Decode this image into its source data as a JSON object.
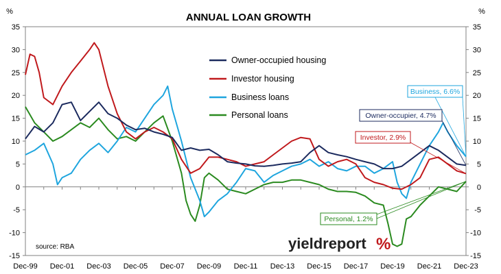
{
  "chart_data": {
    "type": "line",
    "title": "ANNUAL LOAN GROWTH",
    "unit_left": "%",
    "unit_right": "%",
    "ylim": [
      -15,
      35
    ],
    "yticks": [
      -15,
      -10,
      -5,
      0,
      5,
      10,
      15,
      20,
      25,
      30,
      35
    ],
    "xlim": [
      "1999-12",
      "2023-12"
    ],
    "xtick_labels": [
      "Dec-99",
      "Dec-01",
      "Dec-03",
      "Dec-05",
      "Dec-07",
      "Dec-09",
      "Dec-11",
      "Dec-13",
      "Dec-15",
      "Dec-17",
      "Dec-19",
      "Dec-21",
      "Dec-23"
    ],
    "grid": false,
    "legend_position": "upper-center",
    "source": "source: RBA",
    "logo": "yieldreport %",
    "series": [
      {
        "name": "Owner-occupied housing",
        "color": "#1b2a5e",
        "points": [
          [
            "1999-12",
            10.5
          ],
          [
            "2000-06",
            13.2
          ],
          [
            "2000-12",
            12.0
          ],
          [
            "2001-06",
            14.0
          ],
          [
            "2001-12",
            18.0
          ],
          [
            "2002-06",
            18.5
          ],
          [
            "2002-12",
            14.5
          ],
          [
            "2003-06",
            16.5
          ],
          [
            "2003-12",
            18.5
          ],
          [
            "2004-06",
            16.0
          ],
          [
            "2004-12",
            15.0
          ],
          [
            "2005-06",
            13.5
          ],
          [
            "2005-12",
            12.5
          ],
          [
            "2006-06",
            12.8
          ],
          [
            "2006-12",
            12.0
          ],
          [
            "2007-06",
            11.5
          ],
          [
            "2007-12",
            10.8
          ],
          [
            "2008-06",
            8.0
          ],
          [
            "2008-12",
            8.5
          ],
          [
            "2009-06",
            8.0
          ],
          [
            "2009-12",
            8.2
          ],
          [
            "2010-06",
            7.0
          ],
          [
            "2010-12",
            5.5
          ],
          [
            "2011-06",
            5.2
          ],
          [
            "2011-12",
            5.0
          ],
          [
            "2012-06",
            4.6
          ],
          [
            "2012-12",
            4.5
          ],
          [
            "2013-06",
            4.7
          ],
          [
            "2013-12",
            5.0
          ],
          [
            "2014-06",
            5.2
          ],
          [
            "2014-12",
            5.5
          ],
          [
            "2015-06",
            7.5
          ],
          [
            "2015-12",
            9.0
          ],
          [
            "2016-06",
            7.5
          ],
          [
            "2016-12",
            7.0
          ],
          [
            "2017-06",
            6.6
          ],
          [
            "2017-12",
            6.0
          ],
          [
            "2018-06",
            5.5
          ],
          [
            "2018-12",
            5.0
          ],
          [
            "2019-06",
            4.0
          ],
          [
            "2019-12",
            4.0
          ],
          [
            "2020-06",
            4.5
          ],
          [
            "2020-12",
            6.0
          ],
          [
            "2021-06",
            7.5
          ],
          [
            "2021-12",
            9.0
          ],
          [
            "2022-06",
            8.0
          ],
          [
            "2022-12",
            6.5
          ],
          [
            "2023-06",
            5.0
          ],
          [
            "2023-12",
            4.7
          ]
        ]
      },
      {
        "name": "Investor housing",
        "color": "#c0191c",
        "points": [
          [
            "1999-12",
            24.5
          ],
          [
            "2000-03",
            29.0
          ],
          [
            "2000-06",
            28.5
          ],
          [
            "2000-09",
            25.0
          ],
          [
            "2000-12",
            19.5
          ],
          [
            "2001-06",
            18.0
          ],
          [
            "2001-12",
            22.0
          ],
          [
            "2002-06",
            25.0
          ],
          [
            "2002-12",
            27.5
          ],
          [
            "2003-06",
            30.0
          ],
          [
            "2003-09",
            31.5
          ],
          [
            "2003-12",
            30.0
          ],
          [
            "2004-06",
            22.0
          ],
          [
            "2004-12",
            16.0
          ],
          [
            "2005-06",
            12.0
          ],
          [
            "2005-12",
            10.5
          ],
          [
            "2006-06",
            12.0
          ],
          [
            "2006-12",
            13.0
          ],
          [
            "2007-06",
            12.0
          ],
          [
            "2007-12",
            10.5
          ],
          [
            "2008-06",
            6.0
          ],
          [
            "2008-12",
            3.0
          ],
          [
            "2009-06",
            4.0
          ],
          [
            "2009-12",
            6.5
          ],
          [
            "2010-06",
            6.5
          ],
          [
            "2010-12",
            6.0
          ],
          [
            "2011-06",
            5.5
          ],
          [
            "2011-12",
            4.5
          ],
          [
            "2012-06",
            5.0
          ],
          [
            "2012-12",
            5.5
          ],
          [
            "2013-06",
            7.0
          ],
          [
            "2013-12",
            8.5
          ],
          [
            "2014-06",
            10.0
          ],
          [
            "2014-12",
            10.8
          ],
          [
            "2015-06",
            10.5
          ],
          [
            "2015-12",
            6.0
          ],
          [
            "2016-06",
            4.5
          ],
          [
            "2016-12",
            5.5
          ],
          [
            "2017-06",
            6.0
          ],
          [
            "2017-12",
            5.0
          ],
          [
            "2018-06",
            2.0
          ],
          [
            "2018-12",
            1.0
          ],
          [
            "2019-06",
            0.5
          ],
          [
            "2019-12",
            -0.3
          ],
          [
            "2020-06",
            -0.5
          ],
          [
            "2020-12",
            0.5
          ],
          [
            "2021-06",
            2.0
          ],
          [
            "2021-12",
            6.0
          ],
          [
            "2022-06",
            6.5
          ],
          [
            "2022-12",
            5.0
          ],
          [
            "2023-06",
            3.5
          ],
          [
            "2023-12",
            2.9
          ]
        ]
      },
      {
        "name": "Business loans",
        "color": "#1ea5de",
        "points": [
          [
            "1999-12",
            7.0
          ],
          [
            "2000-06",
            8.0
          ],
          [
            "2000-12",
            9.5
          ],
          [
            "2001-06",
            5.0
          ],
          [
            "2001-09",
            0.5
          ],
          [
            "2001-12",
            2.0
          ],
          [
            "2002-06",
            3.0
          ],
          [
            "2002-12",
            6.0
          ],
          [
            "2003-06",
            8.0
          ],
          [
            "2003-12",
            9.5
          ],
          [
            "2004-06",
            7.5
          ],
          [
            "2004-12",
            10.0
          ],
          [
            "2005-06",
            13.0
          ],
          [
            "2005-12",
            12.0
          ],
          [
            "2006-06",
            15.0
          ],
          [
            "2006-12",
            18.0
          ],
          [
            "2007-06",
            20.0
          ],
          [
            "2007-09",
            22.0
          ],
          [
            "2007-12",
            17.0
          ],
          [
            "2008-06",
            10.0
          ],
          [
            "2008-12",
            2.0
          ],
          [
            "2009-06",
            -3.0
          ],
          [
            "2009-09",
            -6.5
          ],
          [
            "2009-12",
            -5.5
          ],
          [
            "2010-06",
            -3.0
          ],
          [
            "2010-12",
            -1.5
          ],
          [
            "2011-06",
            1.0
          ],
          [
            "2011-12",
            4.0
          ],
          [
            "2012-06",
            3.5
          ],
          [
            "2012-12",
            1.0
          ],
          [
            "2013-06",
            2.5
          ],
          [
            "2013-12",
            3.5
          ],
          [
            "2014-06",
            4.5
          ],
          [
            "2014-12",
            5.0
          ],
          [
            "2015-06",
            6.0
          ],
          [
            "2015-12",
            4.5
          ],
          [
            "2016-06",
            5.5
          ],
          [
            "2016-12",
            4.0
          ],
          [
            "2017-06",
            3.5
          ],
          [
            "2017-12",
            4.5
          ],
          [
            "2018-06",
            4.5
          ],
          [
            "2018-12",
            3.0
          ],
          [
            "2019-06",
            4.0
          ],
          [
            "2019-12",
            5.5
          ],
          [
            "2020-03",
            1.0
          ],
          [
            "2020-06",
            -1.5
          ],
          [
            "2020-09",
            -2.5
          ],
          [
            "2020-12",
            1.0
          ],
          [
            "2021-06",
            5.0
          ],
          [
            "2021-12",
            9.0
          ],
          [
            "2022-06",
            12.0
          ],
          [
            "2022-09",
            14.0
          ],
          [
            "2022-12",
            12.0
          ],
          [
            "2023-06",
            9.0
          ],
          [
            "2023-12",
            6.6
          ]
        ]
      },
      {
        "name": "Personal loans",
        "color": "#2a8a1f",
        "points": [
          [
            "1999-12",
            17.5
          ],
          [
            "2000-06",
            14.0
          ],
          [
            "2000-12",
            12.0
          ],
          [
            "2001-06",
            10.0
          ],
          [
            "2001-12",
            11.0
          ],
          [
            "2002-06",
            12.5
          ],
          [
            "2002-12",
            14.0
          ],
          [
            "2003-06",
            13.0
          ],
          [
            "2003-12",
            15.0
          ],
          [
            "2004-06",
            12.5
          ],
          [
            "2004-12",
            10.5
          ],
          [
            "2005-06",
            11.0
          ],
          [
            "2005-12",
            10.0
          ],
          [
            "2006-06",
            12.0
          ],
          [
            "2006-12",
            14.0
          ],
          [
            "2007-06",
            15.5
          ],
          [
            "2007-12",
            10.0
          ],
          [
            "2008-06",
            3.0
          ],
          [
            "2008-09",
            -3.0
          ],
          [
            "2008-12",
            -6.0
          ],
          [
            "2009-03",
            -7.5
          ],
          [
            "2009-06",
            -4.0
          ],
          [
            "2009-09",
            2.0
          ],
          [
            "2009-12",
            3.0
          ],
          [
            "2010-06",
            1.5
          ],
          [
            "2010-12",
            -0.5
          ],
          [
            "2011-06",
            -1.0
          ],
          [
            "2011-12",
            -1.5
          ],
          [
            "2012-06",
            -0.5
          ],
          [
            "2012-12",
            0.5
          ],
          [
            "2013-06",
            1.0
          ],
          [
            "2013-12",
            1.0
          ],
          [
            "2014-06",
            1.5
          ],
          [
            "2014-12",
            1.5
          ],
          [
            "2015-06",
            1.0
          ],
          [
            "2015-12",
            0.5
          ],
          [
            "2016-06",
            -0.5
          ],
          [
            "2016-12",
            -1.0
          ],
          [
            "2017-06",
            -1.0
          ],
          [
            "2017-12",
            -1.2
          ],
          [
            "2018-06",
            -2.0
          ],
          [
            "2018-12",
            -3.5
          ],
          [
            "2019-06",
            -4.0
          ],
          [
            "2019-09",
            -8.0
          ],
          [
            "2019-12",
            -12.5
          ],
          [
            "2020-03",
            -13.0
          ],
          [
            "2020-06",
            -12.5
          ],
          [
            "2020-09",
            -7.0
          ],
          [
            "2020-12",
            -6.5
          ],
          [
            "2021-06",
            -4.0
          ],
          [
            "2021-12",
            -2.0
          ],
          [
            "2022-06",
            0.0
          ],
          [
            "2022-12",
            -0.5
          ],
          [
            "2023-06",
            -1.0
          ],
          [
            "2023-12",
            1.2
          ]
        ]
      }
    ],
    "callouts": [
      {
        "label": "Business, 6.6%",
        "color": "#1ea5de",
        "series": "Business loans",
        "target_date": "2023-12",
        "target_value": 6.6
      },
      {
        "label": "Owner-occupier, 4.7%",
        "color": "#1b2a5e",
        "series": "Owner-occupied housing",
        "target_date": "2023-12",
        "target_value": 4.7
      },
      {
        "label": "Investor, 2.9%",
        "color": "#c0191c",
        "series": "Investor housing",
        "target_date": "2023-12",
        "target_value": 2.9
      },
      {
        "label": "Personal, 1.2%",
        "color": "#2a8a1f",
        "series": "Personal loans",
        "target_date": "2023-12",
        "target_value": 1.2
      }
    ]
  }
}
